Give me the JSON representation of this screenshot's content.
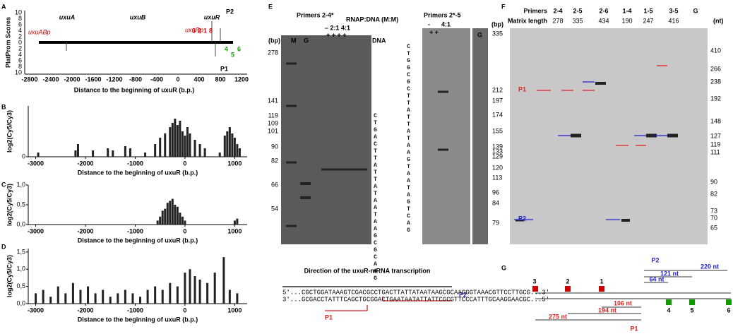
{
  "panel_letters": [
    "A",
    "B",
    "C",
    "D",
    "E",
    "F",
    "G"
  ],
  "panel_a": {
    "y_label": "PlatProm Scores",
    "x_label": "Distance to the beginning of uxuR (b.p.)",
    "genes": [
      "uxuA",
      "uxuB",
      "uxuR"
    ],
    "promoters": [
      "uxuABp",
      "uxuRp"
    ],
    "xticks": [
      "-2800",
      "-2400",
      "-2000",
      "-1600",
      "-1200",
      "-800",
      "-400",
      "0",
      "400",
      "800",
      "1200"
    ],
    "yticks": [
      "10",
      "8",
      "6",
      "4",
      "2",
      "0",
      "2",
      "4",
      "6",
      "8",
      "10"
    ],
    "sites_red": [
      "3",
      "2",
      "1"
    ],
    "sites_green": [
      "4",
      "5",
      "6"
    ],
    "site_8": "8",
    "p1": "P1",
    "p2": "P2"
  },
  "chart_data": [
    {
      "type": "bar",
      "y_label": "log2(Cy5/Cy3)",
      "x_label": "Distance to the beginning of uxuR (b.p.)",
      "x": [
        -2950,
        -2200,
        -2150,
        -1850,
        -1550,
        -1450,
        -1200,
        -1100,
        -800,
        -600,
        -500,
        -400,
        -300,
        -250,
        -200,
        -150,
        -100,
        -50,
        0,
        50,
        100,
        200,
        300,
        400,
        700,
        800,
        850,
        900,
        950,
        1000,
        1050,
        1100
      ],
      "values": [
        0.1,
        0.15,
        0.3,
        0.15,
        0.2,
        0.15,
        0.25,
        0.2,
        0.1,
        0.3,
        0.45,
        0.55,
        0.7,
        0.8,
        0.9,
        0.75,
        0.85,
        0.6,
        0.5,
        0.7,
        0.55,
        0.4,
        0.3,
        0.2,
        0.1,
        0.5,
        0.6,
        0.7,
        0.55,
        0.45,
        0.3,
        0.2
      ],
      "color": "#222222",
      "xlim": [
        -3150,
        1250
      ],
      "xticks": [
        -3000,
        -2000,
        -1000,
        0,
        1000
      ],
      "ylim": [
        0,
        1.2
      ],
      "yticks": [
        0
      ]
    },
    {
      "type": "bar",
      "y_label": "log2(Cy5/Cy3)",
      "x_label": "Distance to the beginning of uxuR (b.p.)",
      "x": [
        -550,
        -500,
        -450,
        -400,
        -350,
        -300,
        -250,
        -200,
        -150,
        -100,
        -50,
        0,
        1000,
        1050
      ],
      "values": [
        0.1,
        0.2,
        0.35,
        0.4,
        0.55,
        0.6,
        0.65,
        0.5,
        0.45,
        0.3,
        0.2,
        0.1,
        0.1,
        0.15
      ],
      "color": "#222222",
      "xlim": [
        -3150,
        1250
      ],
      "xticks": [
        -3000,
        -2000,
        -1000,
        0,
        1000
      ],
      "ylim": [
        0,
        1.0
      ],
      "yticks": [
        {
          "value": 0,
          "label": "0,0"
        },
        {
          "value": 0.5,
          "label": "0,5"
        },
        {
          "value": 1.0,
          "label": "1,0"
        }
      ]
    },
    {
      "type": "bar",
      "y_label": "log2(Cy5/Cy3)",
      "x_label": "Distance to the beginning of uxuR (b.p.)",
      "x": [
        -3000,
        -2850,
        -2700,
        -2550,
        -2400,
        -2250,
        -2100,
        -1950,
        -1800,
        -1650,
        -1500,
        -1350,
        -1200,
        -1050,
        -900,
        -750,
        -600,
        -450,
        -300,
        -150,
        0,
        100,
        200,
        300,
        450,
        600,
        780,
        900,
        1050
      ],
      "values": [
        0.3,
        0.4,
        0.2,
        0.5,
        0.3,
        0.6,
        0.4,
        0.5,
        0.3,
        0.4,
        0.2,
        0.3,
        0.4,
        0.3,
        0.2,
        0.4,
        0.5,
        0.4,
        0.6,
        0.5,
        0.9,
        1.0,
        0.8,
        0.7,
        0.6,
        0.9,
        1.35,
        0.4,
        0.3
      ],
      "color": "#222222",
      "xlim": [
        -3150,
        1250
      ],
      "xticks": [
        -3000,
        -2000,
        -1000,
        0,
        1000
      ],
      "ylim": [
        0,
        1.6
      ],
      "yticks": [
        {
          "value": 0,
          "label": "0,0"
        },
        {
          "value": 0.5,
          "label": "0,5"
        },
        {
          "value": 1.0,
          "label": "1,0"
        },
        {
          "value": 1.5,
          "label": "1,5"
        }
      ]
    }
  ],
  "panel_e": {
    "left_title": "Primers  2-4*",
    "rnap": "RNAP:DNA (M:M)",
    "ratios": "– 2:1 4:1",
    "plus": "+ + + +",
    "dna": "DNA",
    "lanes": [
      "M",
      "G"
    ],
    "bp": "(bp)",
    "left_sizes": [
      "278",
      "141",
      "119",
      "109",
      "101",
      "90",
      "82",
      "66",
      "54"
    ],
    "seq_left": "CTGACTTATTATAATAAGCGCAAG",
    "right_title": "Primers 2*-5",
    "right_lanes": [
      "-",
      "4:1",
      "G"
    ],
    "right_plus": "+    +",
    "seq_right": "CTGGCGCTTATTATAAGTAATAGTCAG",
    "right_bp": "(bp)",
    "right_sizes": [
      "335",
      "212",
      "197",
      "174",
      "155",
      "139",
      "133",
      "129",
      "120",
      "113",
      "96",
      "84",
      "79"
    ],
    "direction": "Direction of the uxuR-mRNA transcription",
    "p2": "P2",
    "p1": "P1",
    "seq_top": "5'...CGCTGGATAAAGTCGACGCCTGACTTATTATAATAAGCGCAAGGGTAAACGTTCCTTGCG...3'",
    "seq_bottom": "3'...GCGACCTATTTCAGCTGCGGACTGAATAATATTATTCGCGTTCCCATTTGCAAGGAACGC...5'"
  },
  "panel_f": {
    "primers_label": "Primers",
    "matrix_label": "Matrix length",
    "primers": [
      "2-4",
      "2-5",
      "2-6",
      "1-4",
      "1-5",
      "3-5",
      "G"
    ],
    "lengths": [
      "278",
      "335",
      "434",
      "190",
      "247",
      "416"
    ],
    "nt": "(nt)",
    "sizes": [
      "410",
      "266",
      "238",
      "192",
      "148",
      "127",
      "119",
      "111",
      "90",
      "82",
      "73",
      "70",
      "65"
    ],
    "p1": "P1",
    "p2": "P2"
  },
  "panel_g": {
    "sites_top": [
      "3",
      "2",
      "1"
    ],
    "sites_bottom": [
      "4",
      "5",
      "6"
    ],
    "p2": "P2",
    "p1": "P1",
    "upper": [
      "220 nt",
      "121 nt",
      "64 nt"
    ],
    "lower": [
      "106 nt",
      "194 nt",
      "275 nt"
    ]
  }
}
